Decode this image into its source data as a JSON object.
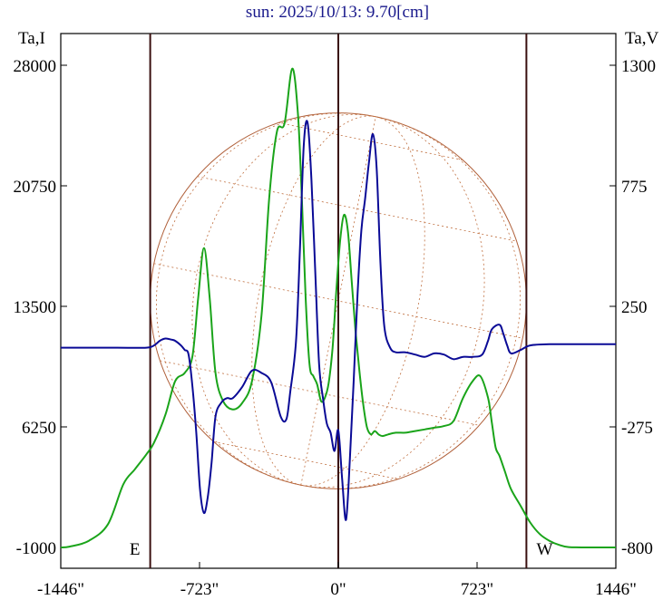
{
  "chart_data": {
    "type": "line",
    "title": "sun: 2025/10/13: 9.70[cm]",
    "ylabel_left": "Ta,I",
    "ylabel_right": "Ta,V",
    "xlim": [
      -1446,
      1446
    ],
    "ylim_left": [
      -1000,
      28000
    ],
    "ylim_right": [
      -800,
      1300
    ],
    "x_ticks": [
      {
        "value": -1446,
        "label": "-1446\""
      },
      {
        "value": -723,
        "label": "-723\""
      },
      {
        "value": 0,
        "label": "0\""
      },
      {
        "value": 723,
        "label": "723\""
      },
      {
        "value": 1446,
        "label": "1446\""
      }
    ],
    "y_ticks_left": [
      {
        "value": 28000,
        "label": "28000"
      },
      {
        "value": 20750,
        "label": "20750"
      },
      {
        "value": 13500,
        "label": "13500"
      },
      {
        "value": 6250,
        "label": "6250"
      },
      {
        "value": -1000,
        "label": "-1000"
      }
    ],
    "y_ticks_right": [
      {
        "value": 1300,
        "label": "1300"
      },
      {
        "value": 775,
        "label": "775"
      },
      {
        "value": 250,
        "label": "250"
      },
      {
        "value": -275,
        "label": "-275"
      },
      {
        "value": -800,
        "label": "-800"
      }
    ],
    "vertical_lines": [
      -980,
      0,
      980
    ],
    "annotations": [
      {
        "text": "E",
        "x": -1060,
        "y_left": -1000
      },
      {
        "text": "W",
        "x": 1075,
        "y_left": -1000
      }
    ],
    "solar_disk_radius": 980,
    "series": [
      {
        "axis": "left",
        "color": "#1aa41a",
        "x": [
          -1446,
          -1400,
          -1300,
          -1200,
          -1120,
          -1060,
          -1000,
          -960,
          -900,
          -850,
          -800,
          -760,
          -730,
          -700,
          -670,
          -640,
          -600,
          -550,
          -500,
          -450,
          -400,
          -360,
          -320,
          -280,
          -240,
          -210,
          -190,
          -170,
          -150,
          -130,
          -110,
          -90,
          -70,
          -50,
          -30,
          -10,
          10,
          30,
          50,
          70,
          90,
          110,
          130,
          150,
          170,
          190,
          210,
          230,
          260,
          300,
          350,
          400,
          450,
          500,
          550,
          600,
          650,
          700,
          740,
          780,
          800,
          820,
          840,
          870,
          900,
          950,
          1000,
          1050,
          1100,
          1150,
          1200,
          1300,
          1400,
          1446
        ],
        "y": [
          -1000,
          -950,
          -600,
          400,
          2800,
          3700,
          4600,
          5300,
          7000,
          9000,
          9500,
          10500,
          14000,
          17000,
          14000,
          9500,
          7800,
          7300,
          7700,
          9000,
          13000,
          20000,
          24000,
          24500,
          27800,
          25000,
          20000,
          14000,
          10000,
          9300,
          8800,
          7800,
          8000,
          8900,
          11000,
          14500,
          17500,
          19000,
          18000,
          15000,
          12000,
          9600,
          7600,
          6200,
          5800,
          6000,
          5800,
          5700,
          5800,
          5900,
          5900,
          6000,
          6100,
          6200,
          6300,
          6600,
          8000,
          9000,
          9300,
          8000,
          6500,
          5000,
          4500,
          3500,
          2500,
          1500,
          500,
          -200,
          -600,
          -850,
          -980,
          -1000,
          -1000,
          -1000
        ]
      },
      {
        "axis": "right",
        "color": "#0a0a96",
        "x": [
          -1446,
          -1300,
          -1150,
          -1000,
          -960,
          -930,
          -900,
          -870,
          -850,
          -820,
          -800,
          -780,
          -760,
          -740,
          -720,
          -700,
          -680,
          -660,
          -640,
          -610,
          -580,
          -550,
          -500,
          -450,
          -400,
          -350,
          -300,
          -270,
          -250,
          -220,
          -200,
          -180,
          -160,
          -140,
          -120,
          -100,
          -80,
          -60,
          -40,
          -20,
          0,
          20,
          40,
          60,
          80,
          100,
          120,
          140,
          160,
          180,
          200,
          220,
          240,
          270,
          300,
          350,
          400,
          450,
          500,
          550,
          600,
          650,
          700,
          750,
          780,
          800,
          840,
          860,
          880,
          900,
          950,
          1000,
          1100,
          1200,
          1300,
          1400,
          1446
        ],
        "y": [
          70,
          70,
          70,
          70,
          80,
          100,
          110,
          105,
          100,
          80,
          60,
          40,
          -100,
          -300,
          -550,
          -650,
          -580,
          -430,
          -230,
          -170,
          -150,
          -150,
          -100,
          -30,
          -40,
          -80,
          -230,
          -240,
          -120,
          100,
          500,
          950,
          1050,
          800,
          400,
          0,
          -150,
          -260,
          -300,
          -380,
          -290,
          -500,
          -680,
          -420,
          -80,
          300,
          580,
          720,
          880,
          1000,
          850,
          430,
          160,
          70,
          50,
          50,
          40,
          30,
          45,
          40,
          20,
          30,
          30,
          40,
          100,
          150,
          170,
          130,
          80,
          45,
          60,
          80,
          85,
          85,
          85,
          85,
          85
        ]
      }
    ]
  }
}
